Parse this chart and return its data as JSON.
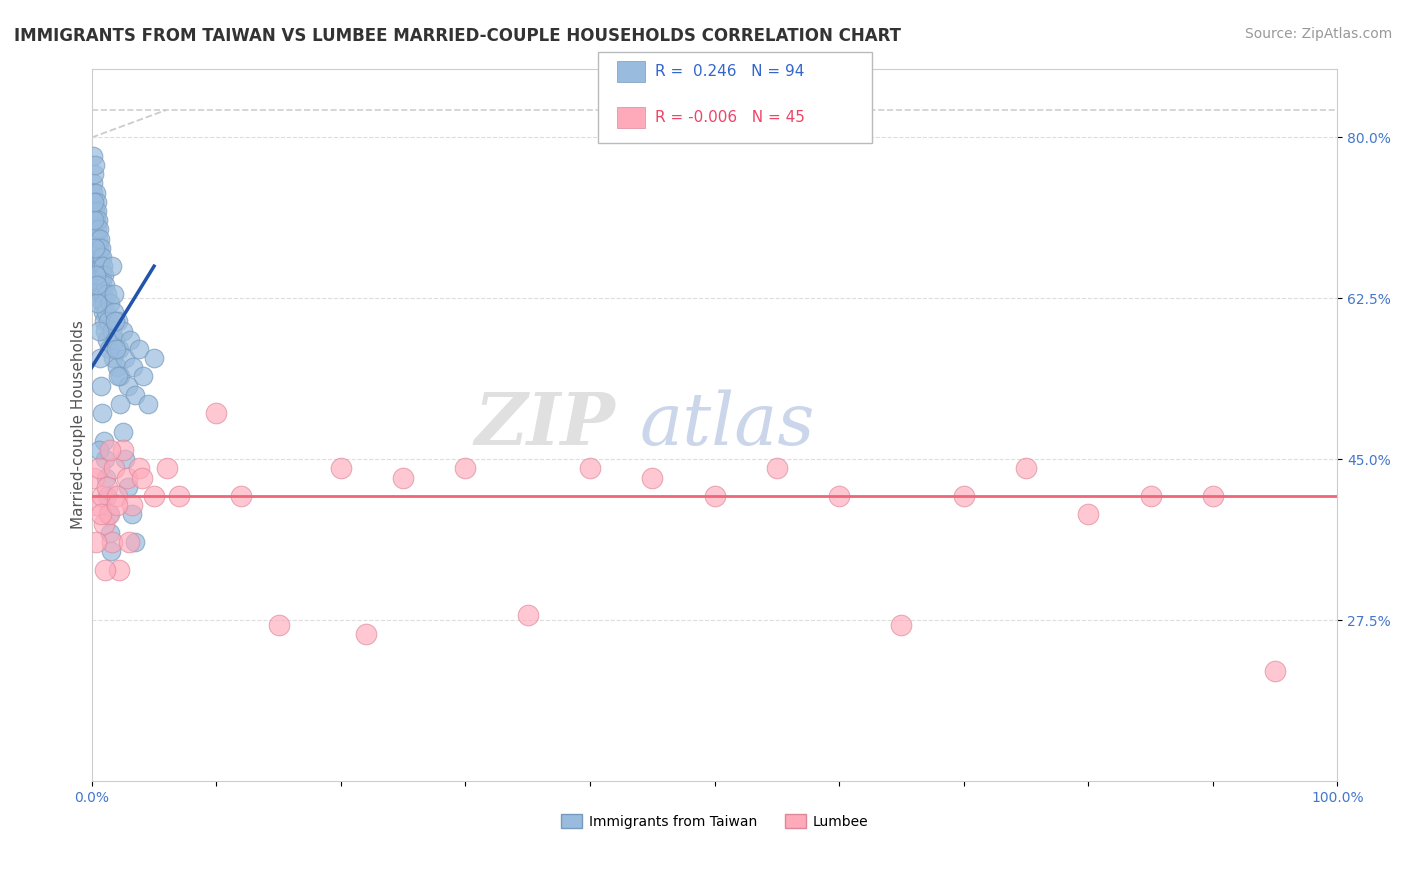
{
  "title": "IMMIGRANTS FROM TAIWAN VS LUMBEE MARRIED-COUPLE HOUSEHOLDS CORRELATION CHART",
  "source": "Source: ZipAtlas.com",
  "ylabel": "Married-couple Households",
  "x_min": 0.0,
  "x_max": 100.0,
  "y_min": 10.0,
  "y_max": 87.5,
  "y_ticks": [
    27.5,
    45.0,
    62.5,
    80.0
  ],
  "x_ticks": [
    0.0,
    10.0,
    20.0,
    30.0,
    40.0,
    50.0,
    60.0,
    70.0,
    80.0,
    90.0,
    100.0
  ],
  "x_tick_labels": [
    "0.0%",
    "",
    "",
    "",
    "",
    "",
    "",
    "",
    "",
    "",
    "100.0%"
  ],
  "y_tick_labels": [
    "27.5%",
    "45.0%",
    "62.5%",
    "80.0%"
  ],
  "blue_color": "#99BBDD",
  "blue_edge_color": "#7799BB",
  "pink_color": "#FFAABB",
  "pink_edge_color": "#DD8899",
  "blue_line_color": "#2255AA",
  "pink_line_color": "#EE6677",
  "dashed_line_color": "#BBBBBB",
  "legend_R_blue": "0.246",
  "legend_N_blue": "94",
  "legend_R_pink": "-0.006",
  "legend_N_pink": "45",
  "blue_label": "Immigrants from Taiwan",
  "pink_label": "Lumbee",
  "blue_scatter_x": [
    0.05,
    0.08,
    0.1,
    0.12,
    0.15,
    0.18,
    0.2,
    0.22,
    0.25,
    0.28,
    0.3,
    0.32,
    0.35,
    0.38,
    0.4,
    0.42,
    0.45,
    0.48,
    0.5,
    0.52,
    0.55,
    0.58,
    0.6,
    0.62,
    0.65,
    0.68,
    0.7,
    0.72,
    0.75,
    0.78,
    0.8,
    0.82,
    0.85,
    0.88,
    0.9,
    0.92,
    0.95,
    0.98,
    1.0,
    1.05,
    1.1,
    1.15,
    1.2,
    1.25,
    1.3,
    1.4,
    1.5,
    1.6,
    1.7,
    1.8,
    1.9,
    2.0,
    2.1,
    2.2,
    2.3,
    2.5,
    2.7,
    2.9,
    3.1,
    3.3,
    3.5,
    3.8,
    4.1,
    4.5,
    5.0,
    0.15,
    0.25,
    0.35,
    0.45,
    0.55,
    0.65,
    0.75,
    0.85,
    0.95,
    1.05,
    1.15,
    1.25,
    1.35,
    1.45,
    1.55,
    1.65,
    1.75,
    1.85,
    1.95,
    2.1,
    2.3,
    2.5,
    2.7,
    2.9,
    3.2,
    3.5,
    0.2,
    0.4,
    0.6
  ],
  "blue_scatter_y": [
    72,
    75,
    78,
    74,
    76,
    73,
    70,
    77,
    72,
    69,
    74,
    71,
    68,
    73,
    70,
    67,
    72,
    69,
    66,
    71,
    68,
    65,
    70,
    67,
    64,
    69,
    66,
    63,
    68,
    65,
    62,
    67,
    64,
    61,
    66,
    63,
    60,
    65,
    62,
    59,
    64,
    61,
    58,
    63,
    60,
    57,
    62,
    59,
    56,
    61,
    58,
    55,
    60,
    57,
    54,
    59,
    56,
    53,
    58,
    55,
    52,
    57,
    54,
    51,
    56,
    71,
    68,
    65,
    62,
    59,
    56,
    53,
    50,
    47,
    45,
    43,
    41,
    39,
    37,
    35,
    66,
    63,
    60,
    57,
    54,
    51,
    48,
    45,
    42,
    39,
    36,
    73,
    64,
    46
  ],
  "pink_scatter_x": [
    0.2,
    0.4,
    0.6,
    0.8,
    1.0,
    1.2,
    1.4,
    1.6,
    1.8,
    2.0,
    2.2,
    2.5,
    2.8,
    3.2,
    3.8,
    5.0,
    7.0,
    10.0,
    15.0,
    20.0,
    25.0,
    30.0,
    35.0,
    40.0,
    45.0,
    50.0,
    55.0,
    60.0,
    65.0,
    70.0,
    75.0,
    80.0,
    85.0,
    90.0,
    95.0,
    0.3,
    0.7,
    1.1,
    1.5,
    2.0,
    3.0,
    4.0,
    6.0,
    12.0,
    22.0
  ],
  "pink_scatter_y": [
    43,
    40,
    44,
    41,
    38,
    42,
    39,
    36,
    44,
    41,
    33,
    46,
    43,
    40,
    44,
    41,
    41,
    50,
    27,
    44,
    43,
    44,
    28,
    44,
    43,
    41,
    44,
    41,
    27,
    41,
    44,
    39,
    41,
    41,
    22,
    36,
    39,
    33,
    46,
    40,
    36,
    43,
    44,
    41,
    26
  ],
  "blue_reg_x0": 0.0,
  "blue_reg_x1": 5.0,
  "blue_reg_y0": 55.0,
  "blue_reg_y1": 66.0,
  "pink_reg_y": 41.0,
  "diag_x0": 0.0,
  "diag_x1": 100.0,
  "diag_y0": 83.0,
  "diag_y1": 83.0,
  "title_fontsize": 12,
  "source_fontsize": 10,
  "axis_label_fontsize": 11,
  "tick_fontsize": 10,
  "legend_fontsize": 11,
  "watermark_fontsize_zip": 52,
  "watermark_fontsize_atlas": 52,
  "background_color": "#FFFFFF",
  "grid_color": "#DDDDDD",
  "tick_color": "#4477CC"
}
